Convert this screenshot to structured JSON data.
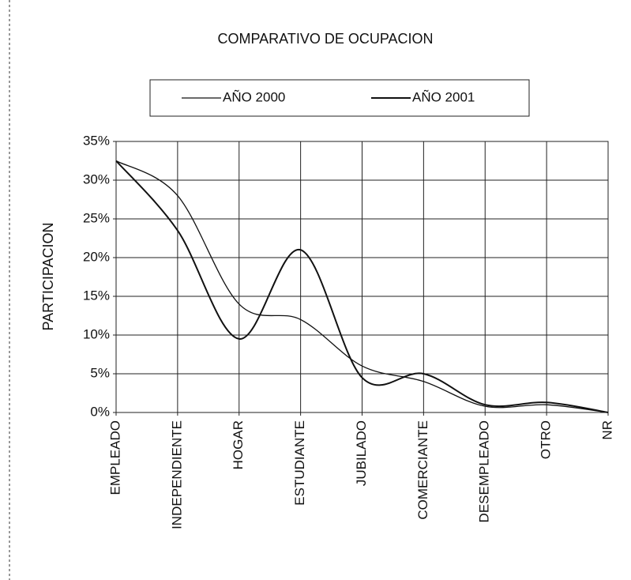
{
  "chart_data": {
    "type": "line",
    "title": "COMPARATIVO DE OCUPACION",
    "ylabel": "PARTICIPACION",
    "categories": [
      "EMPLEADO",
      "INDEPENDIENTE",
      "HOGAR",
      "ESTUDIANTE",
      "JUBILADO",
      "COMERCIANTE",
      "DESEMPLEADO",
      "OTRO",
      "NR"
    ],
    "series": [
      {
        "name": "AÑO 2000",
        "color": "#111111",
        "values": [
          32.5,
          28,
          14,
          12,
          6,
          4,
          0.8,
          1,
          0
        ]
      },
      {
        "name": "AÑO 2001",
        "color": "#111111",
        "values": [
          32.5,
          23.5,
          9.5,
          21,
          4.5,
          5,
          1,
          1.3,
          0
        ]
      }
    ],
    "ylim": [
      0,
      35
    ],
    "yticks": [
      {
        "value": 0,
        "label": "0%"
      },
      {
        "value": 5,
        "label": "5%"
      },
      {
        "value": 10,
        "label": "10%"
      },
      {
        "value": 15,
        "label": "15%"
      },
      {
        "value": 20,
        "label": "20%"
      },
      {
        "value": 25,
        "label": "25%"
      },
      {
        "value": 30,
        "label": "30%"
      },
      {
        "value": 35,
        "label": "35%"
      }
    ],
    "grid": true
  }
}
